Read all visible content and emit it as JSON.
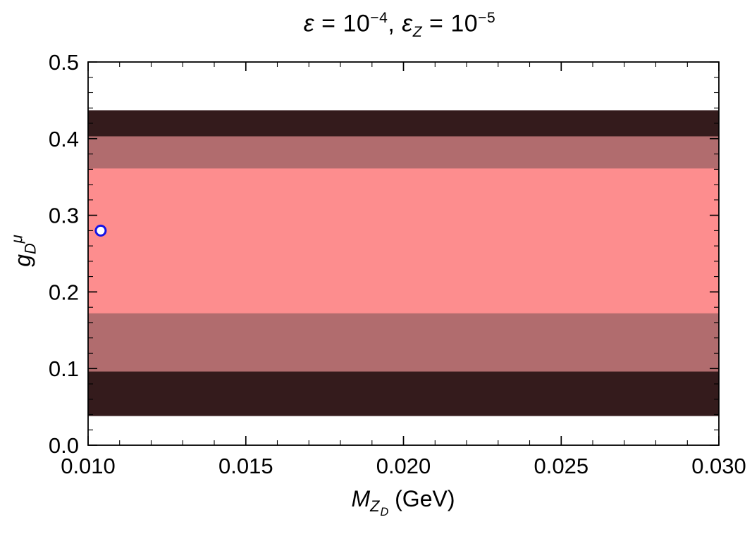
{
  "title_parts": {
    "eps1": "ε",
    "seg1": " = 10",
    "exp1": "−4",
    "seg2": ", ",
    "eps2": "ε",
    "sub2": "Z",
    "seg3": " = 10",
    "exp2": "−5"
  },
  "xlabel_parts": {
    "main": "M",
    "sub": "Z",
    "subsub": "D",
    "rest": " (GeV)"
  },
  "ylabel_parts": {
    "main": "g",
    "sub": "D",
    "sup": "μ"
  },
  "chart_data": {
    "type": "area",
    "title": "ε = 10⁻⁴, ε_Z = 10⁻⁵",
    "xlabel": "M_ZD (GeV)",
    "ylabel": "g_D^μ",
    "xlim": [
      0.01,
      0.03
    ],
    "ylim": [
      0.0,
      0.5
    ],
    "x_ticks": [
      0.01,
      0.015,
      0.02,
      0.025,
      0.03
    ],
    "x_tick_labels": [
      "0.010",
      "0.015",
      "0.020",
      "0.025",
      "0.030"
    ],
    "x_minor_step": 0.001,
    "y_ticks": [
      0.0,
      0.1,
      0.2,
      0.3,
      0.4,
      0.5
    ],
    "y_tick_labels": [
      "0.0",
      "0.1",
      "0.2",
      "0.3",
      "0.4",
      "0.5"
    ],
    "y_minor_step": 0.02,
    "grid": false,
    "legend": "none",
    "frame_color": "#000000",
    "background": "#ffffff",
    "bands": [
      {
        "name": "outer-band-3sigma",
        "y_min": 0.038,
        "y_max": 0.437,
        "color": "#341b1c"
      },
      {
        "name": "middle-band-2sigma",
        "y_min": 0.096,
        "y_max": 0.403,
        "color": "#b16c6e"
      },
      {
        "name": "inner-band-1sigma",
        "y_min": 0.172,
        "y_max": 0.361,
        "color": "#fd8d8e"
      }
    ],
    "best_fit_point": {
      "x": 0.0104,
      "y": 0.28,
      "marker": "open-circle",
      "color": "#1414e6"
    }
  }
}
